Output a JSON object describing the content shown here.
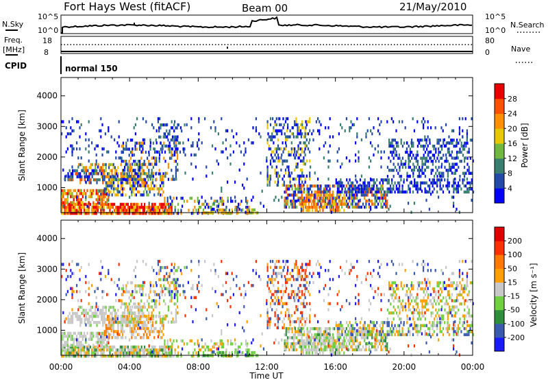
{
  "header": {
    "station": "Fort Hays West (fitACF)",
    "beam": "Beam 00",
    "date": "21/May/2010"
  },
  "summary": {
    "nsky_label": "N.Sky",
    "nsearch_label": "N.Search",
    "nsky_ticks": [
      "10^5",
      "10^0"
    ],
    "nsearch_ticks": [
      "10^5",
      "10^0"
    ],
    "freq_label_1": "Freq.",
    "freq_label_2": "[MHz]",
    "freq_ticks": [
      "18",
      "8"
    ],
    "nave_label": "Nave",
    "nave_ticks": [
      "80",
      "0"
    ],
    "cpid_label": "CPID",
    "cpid_value": "normal 150"
  },
  "chart_data": [
    {
      "type": "heatmap",
      "ylabel": "Slant Range [km]",
      "yticks": [
        "1000",
        "2000",
        "3000",
        "4000"
      ],
      "ylim": [
        180,
        4600
      ],
      "xlim_hours": [
        0,
        24
      ],
      "legend": {
        "label": "Power [dB]",
        "ticks": [
          "4",
          "8",
          "12",
          "16",
          "20",
          "24",
          "28"
        ],
        "colors": [
          "#0000ff",
          "#244aa8",
          "#3a7e70",
          "#70b840",
          "#e8c800",
          "#ff9000",
          "#ff5000",
          "#e80000"
        ]
      }
    },
    {
      "type": "heatmap",
      "ylabel": "Slant Range [km]",
      "yticks": [
        "1000",
        "2000",
        "3000",
        "4000"
      ],
      "ylim": [
        180,
        4600
      ],
      "xlim_hours": [
        0,
        24
      ],
      "legend": {
        "label": "Velocity [m s⁻¹]",
        "ticks": [
          "200",
          "100",
          "50",
          "15",
          "-15",
          "-50",
          "-100",
          "-200"
        ],
        "colors": [
          "#1a1aff",
          "#3a5ab0",
          "#2f8f3f",
          "#70d040",
          "#c8c8c8",
          "#ffa000",
          "#ff7800",
          "#ff3000",
          "#e00000"
        ]
      }
    }
  ],
  "xaxis": {
    "ticks": [
      "00:00",
      "04:00",
      "08:00",
      "12:00",
      "16:00",
      "20:00",
      "00:00"
    ],
    "label": "Time UT"
  }
}
